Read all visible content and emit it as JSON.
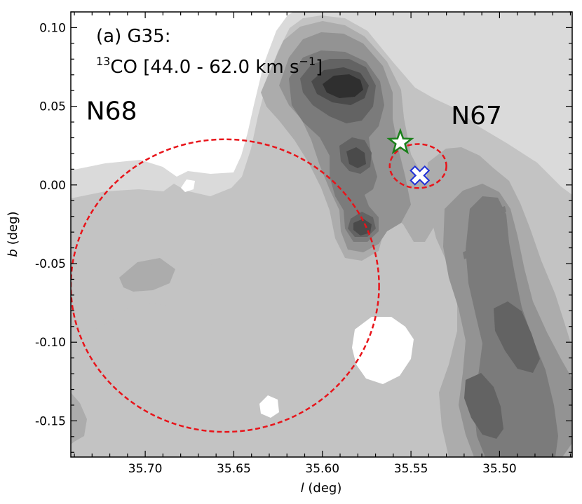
{
  "chart_data": {
    "type": "contour",
    "title": "(a) G35:",
    "title_line2_pre": "13",
    "title_line2_main": "CO [44.0 - 62.0 km s",
    "title_line2_exp": "−1",
    "title_line2_end": "]",
    "xlabel_italic": "l",
    "xlabel_rest": " (deg)",
    "ylabel_italic": "b",
    "ylabel_rest": " (deg)",
    "xlim": [
      35.742,
      35.459
    ],
    "ylim": [
      -0.173,
      0.11
    ],
    "xticks": [
      35.7,
      35.65,
      35.6,
      35.55,
      35.5
    ],
    "xtick_labels": [
      "35.70",
      "35.65",
      "35.60",
      "35.55",
      "35.50"
    ],
    "yticks": [
      0.1,
      0.05,
      0.0,
      -0.05,
      -0.1,
      -0.15
    ],
    "ytick_labels": [
      "0.10",
      "0.05",
      "0.00",
      "-0.05",
      "-0.10",
      "-0.15"
    ],
    "grid": false,
    "colors": {
      "contour_levels": [
        "#dadada",
        "#c3c3c3",
        "#acacac",
        "#939393",
        "#7b7b7b",
        "#636363",
        "#4a4a4a",
        "#2f2f2f"
      ],
      "bubble_ring": "#e8141a",
      "star_fill": "#ffffff",
      "star_edge": "#1a7f1a",
      "cross_fill": "#ffffff",
      "cross_edge": "#1f2fd8"
    },
    "regions": [
      {
        "label": "N68",
        "label_l": 35.719,
        "label_b": 0.047
      },
      {
        "label": "N67",
        "label_l": 35.513,
        "label_b": 0.044
      }
    ],
    "bubbles": [
      {
        "name": "N68",
        "center_l": 35.655,
        "center_b": -0.064,
        "r_l": 0.087,
        "r_b": 0.093
      },
      {
        "name": "N67",
        "center_l": 35.546,
        "center_b": 0.012,
        "r_l": 0.016,
        "r_b": 0.014
      }
    ],
    "markers": [
      {
        "type": "star",
        "l": 35.556,
        "b": 0.027
      },
      {
        "type": "cross",
        "l": 35.545,
        "b": 0.006
      }
    ]
  }
}
